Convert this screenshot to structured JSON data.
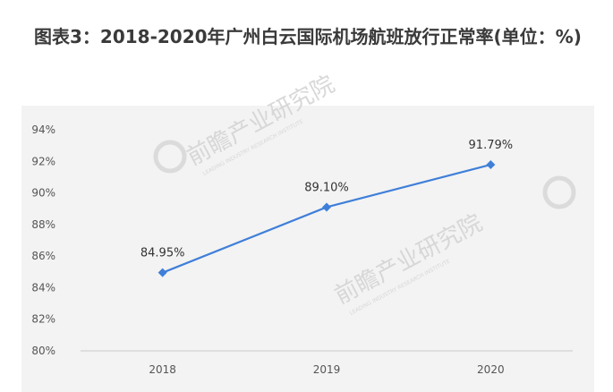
{
  "title": "图表3：2018-2020年广州白云国际机场航班放行正常率(单位：%)",
  "colors": {
    "line": "#3f7fd9",
    "axis": "#c8c8c8",
    "watermark": "#d4d4d4",
    "panel": "#f3f3f3"
  },
  "chart_data": {
    "type": "line",
    "categories": [
      "2018",
      "2019",
      "2020"
    ],
    "series": [
      {
        "values": [
          84.95,
          89.1,
          91.79
        ]
      }
    ],
    "data_labels": [
      "84.95%",
      "89.10%",
      "91.79%"
    ],
    "ylim": [
      80,
      94
    ],
    "yticks": [
      80,
      82,
      84,
      86,
      88,
      90,
      92,
      94
    ],
    "ytick_labels": [
      "80%",
      "82%",
      "84%",
      "86%",
      "88%",
      "90%",
      "92%",
      "94%"
    ],
    "grid": false,
    "legend": "none"
  },
  "watermark": {
    "brand": "前瞻产业研究院",
    "latin": "LEADING INDUSTRY RESEARCH INSTITUTE"
  }
}
